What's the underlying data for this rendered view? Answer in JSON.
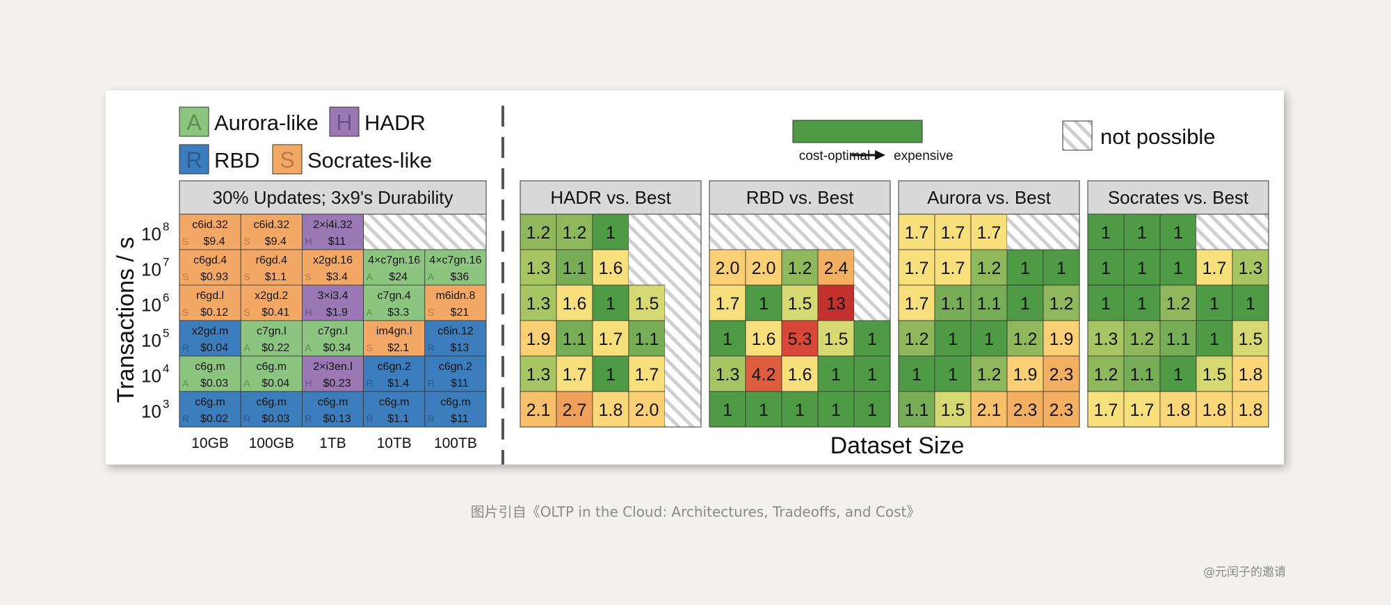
{
  "caption": "图片引自《OLTP in the Cloud: Architectures, Tradeoffs, and Cost》",
  "watermark": "@元闰子的邀请",
  "legend": {
    "architectures": [
      {
        "letter": "A",
        "name": "Aurora-like",
        "color": "#8cc57f"
      },
      {
        "letter": "H",
        "name": "HADR",
        "color": "#9a78b3"
      },
      {
        "letter": "R",
        "name": "RBD",
        "color": "#3b7dbd"
      },
      {
        "letter": "S",
        "name": "Socrates-like",
        "color": "#f4a866"
      }
    ],
    "scale_left": "cost-optimal",
    "scale_right": "expensive",
    "scale_color": "#4f9a45",
    "not_possible": "not possible"
  },
  "chart_data": [
    {
      "type": "table",
      "title": "30% Updates; 3x9's Durability",
      "ylabel": "Transactions / s",
      "y_base": "10",
      "y_exponents": [
        "8",
        "7",
        "6",
        "5",
        "4",
        "3"
      ],
      "categories": [
        "10GB",
        "100GB",
        "1TB",
        "10TB",
        "100TB"
      ],
      "rows": [
        [
          {
            "arch": "S",
            "inst": "c6id.32",
            "cost": "$9.4"
          },
          {
            "arch": "S",
            "inst": "c6id.32",
            "cost": "$9.4"
          },
          {
            "arch": "H",
            "inst": "2×i4i.32",
            "cost": "$11"
          },
          null,
          null
        ],
        [
          {
            "arch": "S",
            "inst": "c6gd.4",
            "cost": "$0.93"
          },
          {
            "arch": "S",
            "inst": "r6gd.4",
            "cost": "$1.1"
          },
          {
            "arch": "S",
            "inst": "x2gd.16",
            "cost": "$3.4"
          },
          {
            "arch": "A",
            "inst": "4×c7gn.16",
            "cost": "$24"
          },
          {
            "arch": "A",
            "inst": "4×c7gn.16",
            "cost": "$36"
          }
        ],
        [
          {
            "arch": "S",
            "inst": "r6gd.l",
            "cost": "$0.12"
          },
          {
            "arch": "S",
            "inst": "x2gd.2",
            "cost": "$0.41"
          },
          {
            "arch": "H",
            "inst": "3×i3.4",
            "cost": "$1.9"
          },
          {
            "arch": "A",
            "inst": "c7gn.4",
            "cost": "$3.3"
          },
          {
            "arch": "S",
            "inst": "m6idn.8",
            "cost": "$21"
          }
        ],
        [
          {
            "arch": "R",
            "inst": "x2gd.m",
            "cost": "$0.04"
          },
          {
            "arch": "A",
            "inst": "c7gn.l",
            "cost": "$0.22"
          },
          {
            "arch": "A",
            "inst": "c7gn.l",
            "cost": "$0.34"
          },
          {
            "arch": "S",
            "inst": "im4gn.l",
            "cost": "$2.1"
          },
          {
            "arch": "R",
            "inst": "c6in.12",
            "cost": "$13"
          }
        ],
        [
          {
            "arch": "A",
            "inst": "c6g.m",
            "cost": "$0.03"
          },
          {
            "arch": "A",
            "inst": "c6g.m",
            "cost": "$0.04"
          },
          {
            "arch": "H",
            "inst": "2×i3en.l",
            "cost": "$0.23"
          },
          {
            "arch": "R",
            "inst": "c6gn.2",
            "cost": "$1.4"
          },
          {
            "arch": "R",
            "inst": "c6gn.2",
            "cost": "$11"
          }
        ],
        [
          {
            "arch": "R",
            "inst": "c6g.m",
            "cost": "$0.02"
          },
          {
            "arch": "R",
            "inst": "c6g.m",
            "cost": "$0.03"
          },
          {
            "arch": "R",
            "inst": "c6g.m",
            "cost": "$0.13"
          },
          {
            "arch": "R",
            "inst": "c6g.m",
            "cost": "$1.1"
          },
          {
            "arch": "R",
            "inst": "c6g.m",
            "cost": "$11"
          }
        ]
      ]
    },
    {
      "type": "heatmap",
      "title": "HADR vs. Best",
      "rows": [
        [
          "1.2",
          "1.2",
          "1",
          null,
          null
        ],
        [
          "1.3",
          "1.1",
          "1.6",
          null,
          null
        ],
        [
          "1.3",
          "1.6",
          "1",
          "1.5",
          null
        ],
        [
          "1.9",
          "1.1",
          "1.7",
          "1.1",
          null
        ],
        [
          "1.3",
          "1.7",
          "1",
          "1.7",
          null
        ],
        [
          "2.1",
          "2.7",
          "1.8",
          "2.0",
          null
        ]
      ]
    },
    {
      "type": "heatmap",
      "title": "RBD vs. Best",
      "rows": [
        [
          null,
          null,
          null,
          null,
          null
        ],
        [
          "2.0",
          "2.0",
          "1.2",
          "2.4",
          null
        ],
        [
          "1.7",
          "1",
          "1.5",
          "13",
          null
        ],
        [
          "1",
          "1.6",
          "5.3",
          "1.5",
          "1"
        ],
        [
          "1.3",
          "4.2",
          "1.6",
          "1",
          "1"
        ],
        [
          "1",
          "1",
          "1",
          "1",
          "1"
        ]
      ]
    },
    {
      "type": "heatmap",
      "title": "Aurora vs. Best",
      "rows": [
        [
          "1.7",
          "1.7",
          "1.7",
          null,
          null
        ],
        [
          "1.7",
          "1.7",
          "1.2",
          "1",
          "1"
        ],
        [
          "1.7",
          "1.1",
          "1.1",
          "1",
          "1.2"
        ],
        [
          "1.2",
          "1",
          "1",
          "1.2",
          "1.9"
        ],
        [
          "1",
          "1",
          "1.2",
          "1.9",
          "2.3"
        ],
        [
          "1.1",
          "1.5",
          "2.1",
          "2.3",
          "2.3"
        ]
      ]
    },
    {
      "type": "heatmap",
      "title": "Socrates vs. Best",
      "rows": [
        [
          "1",
          "1",
          "1",
          null,
          null
        ],
        [
          "1",
          "1",
          "1",
          "1.7",
          "1.3"
        ],
        [
          "1",
          "1",
          "1.2",
          "1",
          "1"
        ],
        [
          "1.3",
          "1.2",
          "1.1",
          "1",
          "1.5"
        ],
        [
          "1.2",
          "1.1",
          "1",
          "1.5",
          "1.8"
        ],
        [
          "1.7",
          "1.7",
          "1.8",
          "1.8",
          "1.8"
        ]
      ]
    }
  ],
  "xlabel": "Dataset Size"
}
